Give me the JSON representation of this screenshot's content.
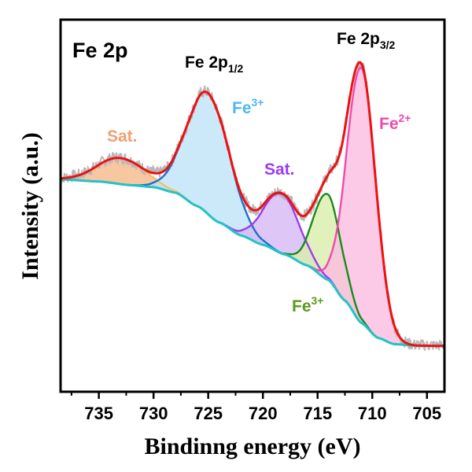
{
  "chart_data": {
    "type": "line",
    "title": "Fe 2p",
    "xlabel": "Bindinng energy (eV)",
    "ylabel": "Intensity (a.u.)",
    "xlim": [
      738.5,
      703.4
    ],
    "x_reversed": true,
    "ylim": [
      0,
      100
    ],
    "x_ticks": [
      735,
      730,
      725,
      720,
      715,
      710,
      705
    ],
    "x_tick_labels": [
      "735",
      "730",
      "725",
      "720",
      "715",
      "710",
      "705"
    ],
    "x_minor_ticks": [
      737.5,
      732.5,
      727.5,
      722.5,
      717.5,
      712.5,
      707.5
    ],
    "y_ticks_shown": false,
    "grid": false,
    "legend": "none",
    "background": {
      "name": "Background",
      "color": "#22c3c7",
      "points": [
        [
          738.5,
          57.1
        ],
        [
          735,
          56.5
        ],
        [
          732,
          55.5
        ],
        [
          730,
          55.0
        ],
        [
          728,
          53.5
        ],
        [
          726,
          49.9
        ],
        [
          724,
          45.5
        ],
        [
          722,
          42.0
        ],
        [
          720,
          39.5
        ],
        [
          718,
          36.9
        ],
        [
          716,
          34.0
        ],
        [
          714,
          30.0
        ],
        [
          712.5,
          24.5
        ],
        [
          711,
          18.5
        ],
        [
          709.5,
          14.5
        ],
        [
          708,
          12.8
        ],
        [
          706,
          12.4
        ],
        [
          703.4,
          12.3
        ]
      ]
    },
    "components": [
      {
        "name": "Sat.",
        "group": "Fe 2p1/2",
        "center": 733.0,
        "height": 7.0,
        "fwhm": 5.0,
        "line_color": "#f0c070",
        "fill_color": "#f5b98a"
      },
      {
        "name": "Fe3+",
        "group": "Fe 2p1/2",
        "center": 725.0,
        "height": 32.5,
        "fwhm": 4.6,
        "line_color": "#1f6fd1",
        "fill_color": "#bfe3f7"
      },
      {
        "name": "Sat.",
        "group": "Fe 2p3/2",
        "center": 718.3,
        "height": 16.0,
        "fwhm": 3.9,
        "line_color": "#9b3cf0",
        "fill_color": "#d6b9f5"
      },
      {
        "name": "Fe3+",
        "group": "Fe 2p3/2",
        "center": 714.1,
        "height": 23.0,
        "fwhm": 3.0,
        "line_color": "#198a1e",
        "fill_color": "#d9eeaa"
      },
      {
        "name": "Fe2+",
        "group": "Fe 2p3/2",
        "center": 711.0,
        "height": 68.5,
        "fwhm": 3.1,
        "line_color": "#f04aaa",
        "fill_color": "#fbbde0"
      }
    ],
    "envelope": {
      "name": "Fitted envelope",
      "color": "#ee1111"
    },
    "raw_data": {
      "name": "Raw data",
      "color": "#b8b8b8",
      "noise_amplitude": 1.6
    },
    "annotations": [
      {
        "id": "panel",
        "text": "Fe 2p",
        "color": "#000000"
      },
      {
        "id": "p12",
        "text": "Fe 2p",
        "sub": "1/2",
        "color": "#000000"
      },
      {
        "id": "p32",
        "text": "Fe 2p",
        "sub": "3/2",
        "color": "#000000"
      },
      {
        "id": "sat1",
        "text": "Sat.",
        "color": "#f0a070"
      },
      {
        "id": "fe3a",
        "text": "Fe",
        "sup": "3+",
        "color": "#4db8f0"
      },
      {
        "id": "sat2",
        "text": "Sat.",
        "color": "#9b3cf0"
      },
      {
        "id": "fe2",
        "text": "Fe",
        "sup": "2+",
        "color": "#f04aaa"
      },
      {
        "id": "fe3b",
        "text": "Fe",
        "sup": "3+",
        "color": "#5a9a1a"
      }
    ]
  }
}
